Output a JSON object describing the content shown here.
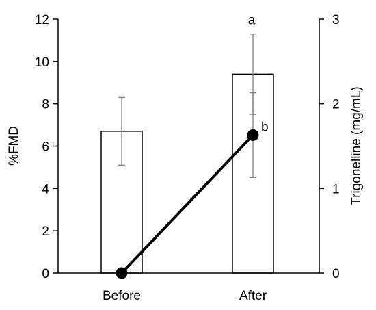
{
  "chart_data": {
    "type": "bar",
    "categories": [
      "Before",
      "After"
    ],
    "left_axis": {
      "label": "%FMD",
      "ylim": [
        0,
        12
      ],
      "ticks": [
        "0",
        "2",
        "4",
        "6",
        "8",
        "10",
        "12"
      ]
    },
    "right_axis": {
      "label": "Trigonelline (mg/mL)",
      "ylim": [
        0,
        3
      ],
      "ticks": [
        "0",
        "1",
        "2",
        "3"
      ]
    },
    "series": [
      {
        "type": "bar",
        "axis": "left",
        "values": [
          6.7,
          9.4
        ],
        "error": [
          1.6,
          1.9
        ],
        "fill": "#ffffff",
        "stroke": "#000000"
      },
      {
        "type": "line",
        "axis": "right",
        "values": [
          0,
          1.63
        ],
        "error": [
          0,
          0.5
        ],
        "color": "#000000",
        "marker": "circle"
      }
    ],
    "annotations": [
      "a",
      "b"
    ],
    "grid": false,
    "legend": "none"
  }
}
